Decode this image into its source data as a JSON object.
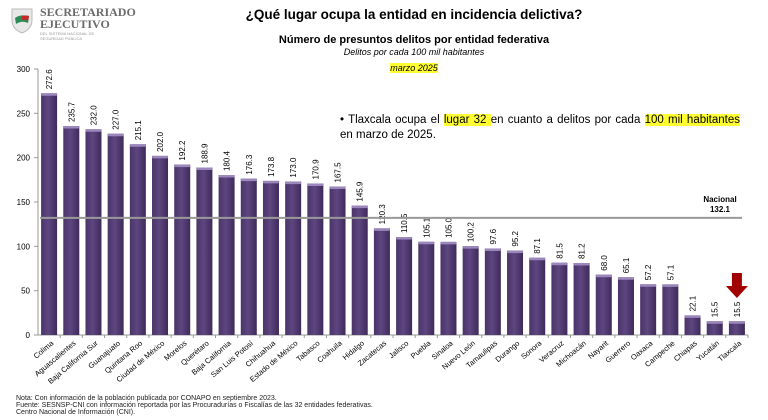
{
  "header": {
    "org_name_line1": "SECRETARIADO",
    "org_name_line2": "EJECUTIVO",
    "org_subtitle": "DEL SISTEMA NACIONAL DE SEGURIDAD PÚBLICA",
    "title": "¿Qué lugar ocupa la entidad en incidencia delictiva?"
  },
  "chart_data": {
    "type": "bar",
    "title": "Número de presuntos delitos por entidad federativa",
    "subtitle": "Delitos por cada 100 mil habitantes",
    "period": "marzo 2025",
    "categories": [
      "Colima",
      "Aguascalientes",
      "Baja California Sur",
      "Guanajuato",
      "Quintana Roo",
      "Ciudad de México",
      "Morelos",
      "Querétaro",
      "Baja California",
      "San Luis Potosí",
      "Chihuahua",
      "Estado de México",
      "Tabasco",
      "Coahuila",
      "Hidalgo",
      "Zacatecas",
      "Jalisco",
      "Puebla",
      "Sinaloa",
      "Nuevo León",
      "Tamaulipas",
      "Durango",
      "Sonora",
      "Veracruz",
      "Michoacán",
      "Nayarit",
      "Guerrero",
      "Oaxaca",
      "Campeche",
      "Chiapas",
      "Yucatán",
      "Tlaxcala"
    ],
    "values": [
      272.6,
      235.7,
      232.0,
      227.0,
      215.1,
      202.0,
      192.2,
      188.9,
      180.4,
      176.3,
      173.8,
      173.0,
      170.9,
      167.5,
      145.9,
      120.3,
      110.5,
      105.1,
      105.0,
      100.2,
      97.6,
      95.2,
      87.1,
      81.5,
      81.2,
      68.0,
      65.1,
      57.2,
      57.1,
      22.1,
      15.5,
      15.5
    ],
    "value_labels": [
      "272.6",
      "235.7",
      "232.0",
      "227.0",
      "215.1",
      "202.0",
      "192.2",
      "188.9",
      "180.4",
      "176.3",
      "173.8",
      "173.0",
      "170.9",
      "167.5",
      "145.9",
      "120.3",
      "110.5",
      "105.1",
      "105.0",
      "100.2",
      "97.6",
      "95.2",
      "87.1",
      "81.5",
      "81.2",
      "68.0",
      "65.1",
      "57.2",
      "57.1",
      "22.1",
      "15.5",
      "15.5"
    ],
    "ylim": [
      0,
      300
    ],
    "yticks": [
      "0",
      "50",
      "100",
      "150",
      "200",
      "250",
      "300"
    ],
    "reference_line": {
      "label": "Nacional",
      "value": 132.1,
      "value_label": "132.1"
    },
    "highlight": {
      "category": "Tlaxcala",
      "marker": "down-arrow",
      "color": "#a00000"
    },
    "bar_color": "#5e4680",
    "grid": false,
    "legend": "none"
  },
  "annotation": {
    "part1": "Tlaxcala ocupa el ",
    "hl1": "lugar 32 ",
    "part2": "en cuanto a delitos por cada ",
    "hl2": "100 mil habitantes",
    "part3": " en marzo de 2025."
  },
  "footer": {
    "note": "Nota: Con información de la población publicada por CONAPO en septiembre 2023.",
    "source": "Fuente: SESNSP-CNI con información reportada por las Procuradurías o Fiscalías de las 32 entidades federativas.",
    "center": "Centro Nacional de Información (CNI)."
  }
}
